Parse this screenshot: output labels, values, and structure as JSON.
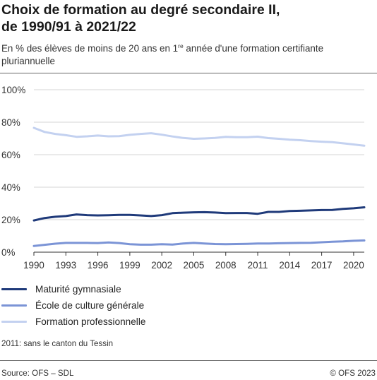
{
  "header": {
    "title_line1": "Choix de formation au degré secondaire II,",
    "title_line2": "de 1990/91 à 2021/22",
    "subtitle_before": "En % des élèves de moins de 20 ans en 1",
    "subtitle_sup": "re",
    "subtitle_after": " année d'une formation certifiante pluriannuelle"
  },
  "chart_data": {
    "type": "line",
    "x": [
      1990,
      1991,
      1992,
      1993,
      1994,
      1995,
      1996,
      1997,
      1998,
      1999,
      2000,
      2001,
      2002,
      2003,
      2004,
      2005,
      2006,
      2007,
      2008,
      2009,
      2010,
      2011,
      2012,
      2013,
      2014,
      2015,
      2016,
      2017,
      2018,
      2019,
      2020,
      2021
    ],
    "xticks": [
      1990,
      1993,
      1996,
      1999,
      2002,
      2005,
      2008,
      2011,
      2014,
      2017,
      2020
    ],
    "xlim": [
      1990,
      2021
    ],
    "ylim": [
      0,
      100
    ],
    "yticks": [
      0,
      20,
      40,
      60,
      80,
      100
    ],
    "ytick_labels": [
      "0%",
      "20%",
      "40%",
      "60%",
      "80%",
      "100%"
    ],
    "grid": true,
    "series": [
      {
        "name": "Maturité gymnasiale",
        "color": "#1f3a7a",
        "values": [
          19.5,
          21.0,
          21.8,
          22.2,
          23.2,
          22.8,
          22.6,
          22.7,
          22.9,
          22.9,
          22.6,
          22.2,
          22.8,
          24.0,
          24.3,
          24.5,
          24.6,
          24.4,
          24.0,
          24.1,
          24.1,
          23.6,
          24.8,
          24.8,
          25.3,
          25.5,
          25.7,
          25.9,
          26.0,
          26.6,
          27.0,
          27.6
        ]
      },
      {
        "name": "École de culture générale",
        "color": "#7b94d6",
        "values": [
          3.8,
          4.5,
          5.2,
          5.7,
          5.7,
          5.7,
          5.6,
          6.0,
          5.6,
          4.9,
          4.6,
          4.6,
          4.9,
          4.7,
          5.3,
          5.7,
          5.3,
          5.0,
          4.9,
          5.0,
          5.1,
          5.3,
          5.3,
          5.5,
          5.6,
          5.7,
          5.8,
          6.1,
          6.4,
          6.6,
          7.0,
          7.2
        ]
      },
      {
        "name": "Formation professionnelle",
        "color": "#c3d1f0",
        "values": [
          76.5,
          74.0,
          72.8,
          72.0,
          71.0,
          71.3,
          71.8,
          71.3,
          71.4,
          72.2,
          72.8,
          73.2,
          72.3,
          71.2,
          70.3,
          69.8,
          70.0,
          70.3,
          71.0,
          70.8,
          70.8,
          71.1,
          70.2,
          69.8,
          69.2,
          68.9,
          68.4,
          68.0,
          67.7,
          67.0,
          66.3,
          65.5
        ]
      }
    ],
    "note": "2011: sans le canton du Tessin"
  },
  "footer": {
    "source": "Source: OFS – SDL",
    "copyright": "© OFS 2023"
  }
}
